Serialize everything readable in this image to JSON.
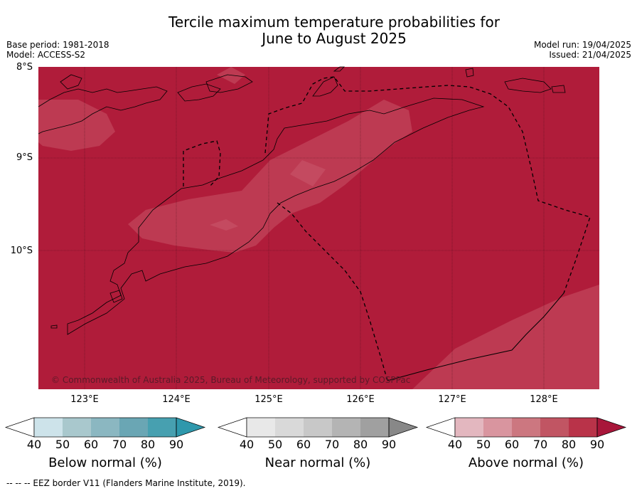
{
  "header": {
    "title_line1": "Tercile maximum temperature probabilities for",
    "title_line2": "June to August 2025",
    "base_period": "Base period: 1981-2018",
    "model": "Model: ACCESS-S2",
    "model_run": "Model run: 19/04/2025",
    "issued": "Issued: 21/04/2025"
  },
  "map": {
    "lat_labels": [
      "8°S",
      "9°S",
      "10°S"
    ],
    "lon_labels": [
      "123°E",
      "124°E",
      "125°E",
      "126°E",
      "127°E",
      "128°E"
    ],
    "copyright": "© Commonwealth of Australia 2025, Bureau of Meteorology, supported by COSPPac",
    "colors": {
      "above_90": "#b01c3a",
      "above_80": "#bd3a52",
      "coast": "#000000"
    }
  },
  "legend": {
    "below": {
      "title": "Below normal (%)",
      "ticks": [
        "40",
        "50",
        "60",
        "70",
        "80",
        "90"
      ],
      "colors": [
        "#ffffff",
        "#cde3ea",
        "#a9c8cd",
        "#8bb7c1",
        "#6aa6b4",
        "#47a0b0",
        "#2f98ac"
      ]
    },
    "near": {
      "title": "Near normal (%)",
      "ticks": [
        "40",
        "50",
        "60",
        "70",
        "80",
        "90"
      ],
      "colors": [
        "#ffffff",
        "#e8e8e8",
        "#d9d9d9",
        "#c8c8c8",
        "#b4b4b4",
        "#a0a0a0",
        "#888888"
      ]
    },
    "above": {
      "title": "Above normal (%)",
      "ticks": [
        "40",
        "50",
        "60",
        "70",
        "80",
        "90"
      ],
      "colors": [
        "#ffffff",
        "#e3b7bf",
        "#d9959f",
        "#cc7780",
        "#c15563",
        "#b93349",
        "#a8163a"
      ]
    }
  },
  "footnote": "--  --  -- EEZ border V11 (Flanders Marine Institute, 2019)."
}
